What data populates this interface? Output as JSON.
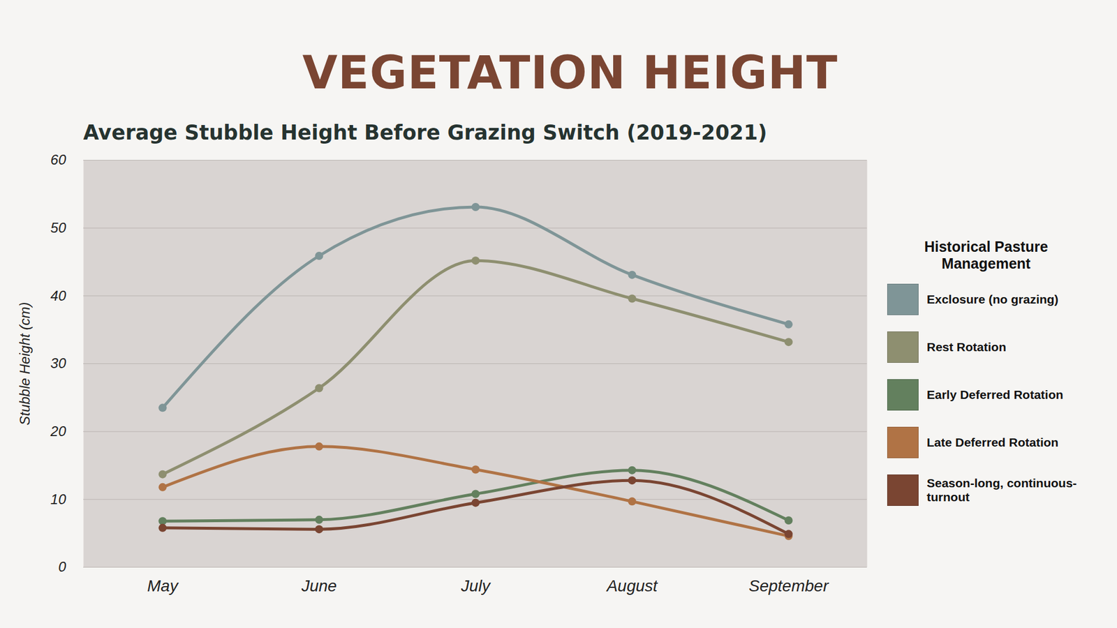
{
  "chart_data": {
    "type": "line",
    "title": "VEGETATION HEIGHT",
    "subtitle": "Average Stubble Height Before Grazing Switch (2019-2021)",
    "y_label": "Stubble Height (cm)",
    "legend_title": "Historical Pasture Management",
    "categories": [
      "May",
      "June",
      "July",
      "August",
      "September"
    ],
    "series": [
      {
        "name": "Exclosure (no grazing)",
        "color": "#7f9597",
        "values": [
          23.5,
          45.9,
          53.1,
          43.1,
          35.8
        ]
      },
      {
        "name": "Rest Rotation",
        "color": "#8e8f70",
        "values": [
          13.7,
          26.4,
          45.2,
          39.6,
          33.2
        ]
      },
      {
        "name": "Early Deferred Rotation",
        "color": "#63805e",
        "values": [
          6.8,
          7.0,
          10.8,
          14.3,
          6.9
        ]
      },
      {
        "name": "Late Deferred Rotation",
        "color": "#b07345",
        "values": [
          11.8,
          17.8,
          14.4,
          9.7,
          4.6
        ]
      },
      {
        "name": "Season-long, continuous-turnout",
        "color": "#7a4532",
        "values": [
          5.8,
          5.6,
          9.5,
          12.8,
          4.9
        ]
      }
    ],
    "ylim": [
      0,
      60
    ],
    "yticks": [
      0,
      10,
      20,
      30,
      40,
      50,
      60
    ],
    "grid": true,
    "legend": "right",
    "marker": "circle"
  }
}
